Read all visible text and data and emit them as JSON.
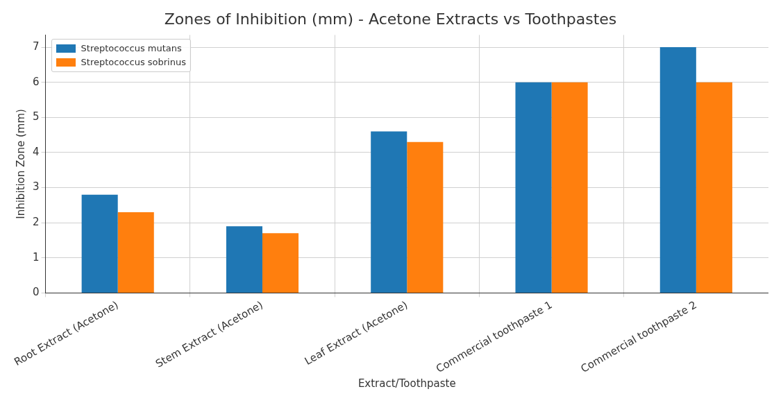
{
  "chart_data": {
    "type": "bar",
    "title": "Zones of Inhibition (mm) - Acetone Extracts vs Toothpastes",
    "xlabel": "Extract/Toothpaste",
    "ylabel": "Inhibition Zone (mm)",
    "categories": [
      "Root Extract (Acetone)",
      "Stem Extract (Acetone)",
      "Leaf Extract (Acetone)",
      "Commercial toothpaste 1",
      "Commercial toothpaste 2"
    ],
    "series": [
      {
        "name": "Streptococcus mutans",
        "color": "#1f77b4",
        "values": [
          2.8,
          1.9,
          4.6,
          6,
          7
        ]
      },
      {
        "name": "Streptococcus sobrinus",
        "color": "#ff7f0e",
        "values": [
          2.3,
          1.7,
          4.3,
          6,
          6
        ]
      }
    ],
    "ylim": [
      0,
      7.35
    ],
    "yticks": [
      0,
      1,
      2,
      3,
      4,
      5,
      6,
      7
    ],
    "grid": true,
    "legend": "top left"
  }
}
